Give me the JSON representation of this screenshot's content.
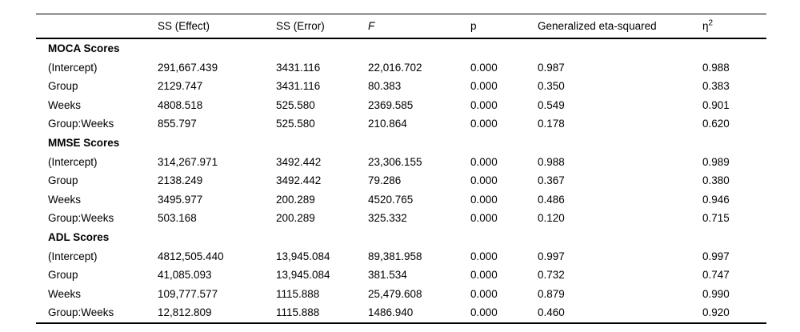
{
  "table": {
    "header": {
      "blank": "",
      "ss_effect": "SS (Effect)",
      "ss_error": "SS (Error)",
      "f": "F",
      "p": "p",
      "ges": "Generalized eta-squared",
      "eta_base": "η",
      "eta_sup": "2"
    },
    "sections": [
      {
        "title": "MOCA Scores",
        "rows": [
          {
            "label": "(Intercept)",
            "ss_effect": "291,667.439",
            "ss_error": "3431.116",
            "f": "22,016.702",
            "p": "0.000",
            "ges": "0.987",
            "eta_sq": "0.988"
          },
          {
            "label": "Group",
            "ss_effect": "2129.747",
            "ss_error": "3431.116",
            "f": "80.383",
            "p": "0.000",
            "ges": "0.350",
            "eta_sq": "0.383"
          },
          {
            "label": "Weeks",
            "ss_effect": "4808.518",
            "ss_error": "525.580",
            "f": "2369.585",
            "p": "0.000",
            "ges": "0.549",
            "eta_sq": "0.901"
          },
          {
            "label": "Group:Weeks",
            "ss_effect": "855.797",
            "ss_error": "525.580",
            "f": "210.864",
            "p": "0.000",
            "ges": "0.178",
            "eta_sq": "0.620"
          }
        ]
      },
      {
        "title": "MMSE Scores",
        "rows": [
          {
            "label": "(Intercept)",
            "ss_effect": "314,267.971",
            "ss_error": "3492.442",
            "f": "23,306.155",
            "p": "0.000",
            "ges": "0.988",
            "eta_sq": "0.989"
          },
          {
            "label": "Group",
            "ss_effect": "2138.249",
            "ss_error": "3492.442",
            "f": "79.286",
            "p": "0.000",
            "ges": "0.367",
            "eta_sq": "0.380"
          },
          {
            "label": "Weeks",
            "ss_effect": "3495.977",
            "ss_error": "200.289",
            "f": "4520.765",
            "p": "0.000",
            "ges": "0.486",
            "eta_sq": "0.946"
          },
          {
            "label": "Group:Weeks",
            "ss_effect": "503.168",
            "ss_error": "200.289",
            "f": "325.332",
            "p": "0.000",
            "ges": "0.120",
            "eta_sq": "0.715"
          }
        ]
      },
      {
        "title": "ADL Scores",
        "rows": [
          {
            "label": "(Intercept)",
            "ss_effect": "4812,505.440",
            "ss_error": "13,945.084",
            "f": "89,381.958",
            "p": "0.000",
            "ges": "0.997",
            "eta_sq": "0.997"
          },
          {
            "label": "Group",
            "ss_effect": "41,085.093",
            "ss_error": "13,945.084",
            "f": "381.534",
            "p": "0.000",
            "ges": "0.732",
            "eta_sq": "0.747"
          },
          {
            "label": "Weeks",
            "ss_effect": "109,777.577",
            "ss_error": "1115.888",
            "f": "25,479.608",
            "p": "0.000",
            "ges": "0.879",
            "eta_sq": "0.990"
          },
          {
            "label": "Group:Weeks",
            "ss_effect": "12,812.809",
            "ss_error": "1115.888",
            "f": "1486.940",
            "p": "0.000",
            "ges": "0.460",
            "eta_sq": "0.920"
          }
        ]
      }
    ]
  }
}
